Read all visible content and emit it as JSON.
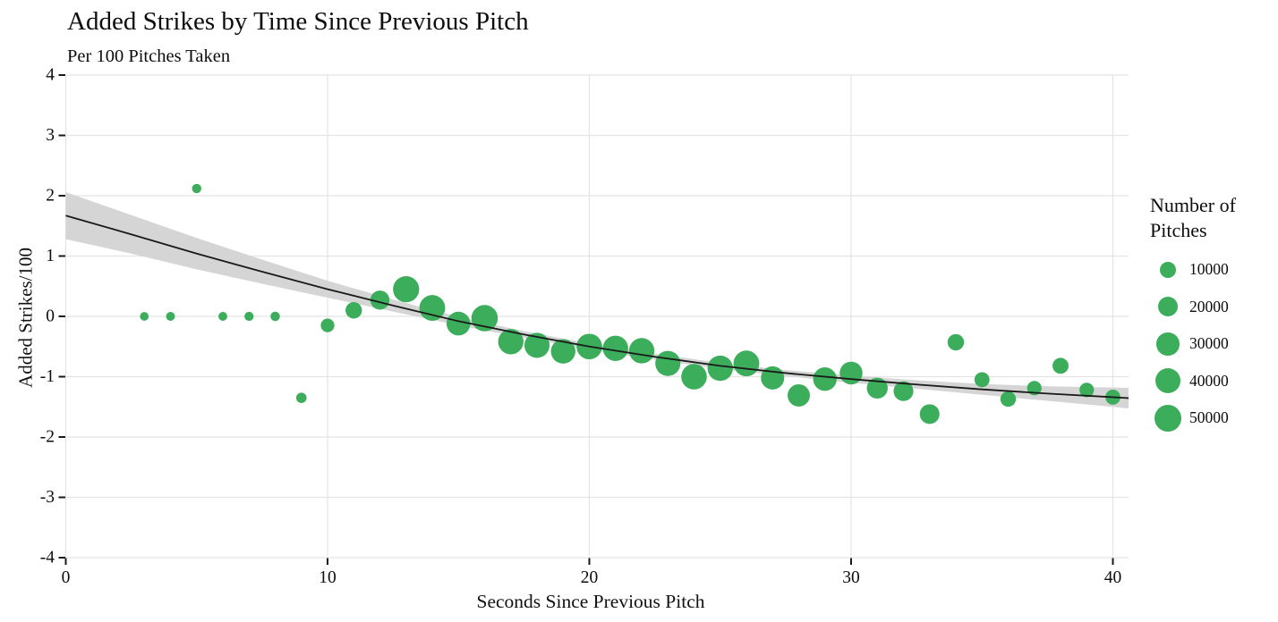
{
  "title": "Added Strikes by Time Since Previous Pitch",
  "subtitle": "Per 100 Pitches Taken",
  "colors": {
    "bubble": "#3CAD5A",
    "band": "#d5d5d5",
    "trend": "#1a1a1a",
    "grid": "#e4e4e4",
    "tick": "#1a1a1a",
    "text": "#0d0d0d"
  },
  "legend": {
    "title_line1": "Number of",
    "title_line2": "Pitches",
    "items": [
      {
        "label": "10000",
        "n": 10000
      },
      {
        "label": "20000",
        "n": 20000
      },
      {
        "label": "30000",
        "n": 30000
      },
      {
        "label": "40000",
        "n": 40000
      },
      {
        "label": "50000",
        "n": 50000
      }
    ]
  },
  "chart_data": {
    "type": "scatter",
    "title": "Added Strikes by Time Since Previous Pitch",
    "subtitle": "Per 100 Pitches Taken",
    "xlabel": "Seconds Since Previous Pitch",
    "ylabel": "Added Strikes/100",
    "xlim": [
      0,
      40
    ],
    "ylim": [
      -4,
      4
    ],
    "xticks": [
      0,
      10,
      20,
      30,
      40
    ],
    "yticks": [
      -4,
      -3,
      -2,
      -1,
      0,
      1,
      2,
      3,
      4
    ],
    "grid": true,
    "legend_position": "right",
    "size_legend_title": "Number of Pitches",
    "size_legend_values": [
      10000,
      20000,
      30000,
      40000,
      50000
    ],
    "points": [
      {
        "x": 3,
        "y": 0.0,
        "n": 100
      },
      {
        "x": 4,
        "y": 0.0,
        "n": 150
      },
      {
        "x": 5,
        "y": 2.12,
        "n": 300
      },
      {
        "x": 6,
        "y": 0.0,
        "n": 150
      },
      {
        "x": 7,
        "y": 0.0,
        "n": 250
      },
      {
        "x": 8,
        "y": 0.0,
        "n": 350
      },
      {
        "x": 9,
        "y": -1.35,
        "n": 900
      },
      {
        "x": 10,
        "y": -0.15,
        "n": 4500
      },
      {
        "x": 11,
        "y": 0.1,
        "n": 10000
      },
      {
        "x": 12,
        "y": 0.27,
        "n": 17000
      },
      {
        "x": 13,
        "y": 0.45,
        "n": 45000
      },
      {
        "x": 14,
        "y": 0.14,
        "n": 43000
      },
      {
        "x": 15,
        "y": -0.12,
        "n": 34000
      },
      {
        "x": 16,
        "y": -0.03,
        "n": 46000
      },
      {
        "x": 17,
        "y": -0.42,
        "n": 41000
      },
      {
        "x": 18,
        "y": -0.48,
        "n": 40000
      },
      {
        "x": 19,
        "y": -0.58,
        "n": 37000
      },
      {
        "x": 20,
        "y": -0.5,
        "n": 42000
      },
      {
        "x": 21,
        "y": -0.53,
        "n": 41000
      },
      {
        "x": 22,
        "y": -0.57,
        "n": 41000
      },
      {
        "x": 23,
        "y": -0.78,
        "n": 40000
      },
      {
        "x": 24,
        "y": -1.0,
        "n": 42000
      },
      {
        "x": 25,
        "y": -0.86,
        "n": 41000
      },
      {
        "x": 26,
        "y": -0.78,
        "n": 43000
      },
      {
        "x": 27,
        "y": -1.02,
        "n": 32000
      },
      {
        "x": 28,
        "y": -1.31,
        "n": 28000
      },
      {
        "x": 29,
        "y": -1.04,
        "n": 33000
      },
      {
        "x": 30,
        "y": -0.94,
        "n": 30000
      },
      {
        "x": 31,
        "y": -1.19,
        "n": 23000
      },
      {
        "x": 32,
        "y": -1.24,
        "n": 19000
      },
      {
        "x": 33,
        "y": -1.62,
        "n": 19000
      },
      {
        "x": 34,
        "y": -0.43,
        "n": 10000
      },
      {
        "x": 35,
        "y": -1.05,
        "n": 7000
      },
      {
        "x": 36,
        "y": -1.37,
        "n": 8000
      },
      {
        "x": 37,
        "y": -1.19,
        "n": 6000
      },
      {
        "x": 38,
        "y": -0.82,
        "n": 9000
      },
      {
        "x": 39,
        "y": -1.22,
        "n": 6000
      },
      {
        "x": 40,
        "y": -1.34,
        "n": 7000
      }
    ],
    "trend": {
      "x": [
        0,
        2.5,
        5,
        7.5,
        10,
        12.5,
        15,
        17.5,
        20,
        22.5,
        25,
        27.5,
        30,
        32.5,
        35,
        37.5,
        40,
        40.6
      ],
      "y": [
        1.67,
        1.36,
        1.04,
        0.74,
        0.45,
        0.18,
        -0.08,
        -0.3,
        -0.5,
        -0.67,
        -0.82,
        -0.94,
        -1.04,
        -1.13,
        -1.21,
        -1.28,
        -1.34,
        -1.355
      ],
      "ci": [
        0.39,
        0.32,
        0.26,
        0.2,
        0.14,
        0.1,
        0.07,
        0.055,
        0.05,
        0.05,
        0.05,
        0.05,
        0.06,
        0.07,
        0.09,
        0.12,
        0.16,
        0.17
      ]
    }
  }
}
